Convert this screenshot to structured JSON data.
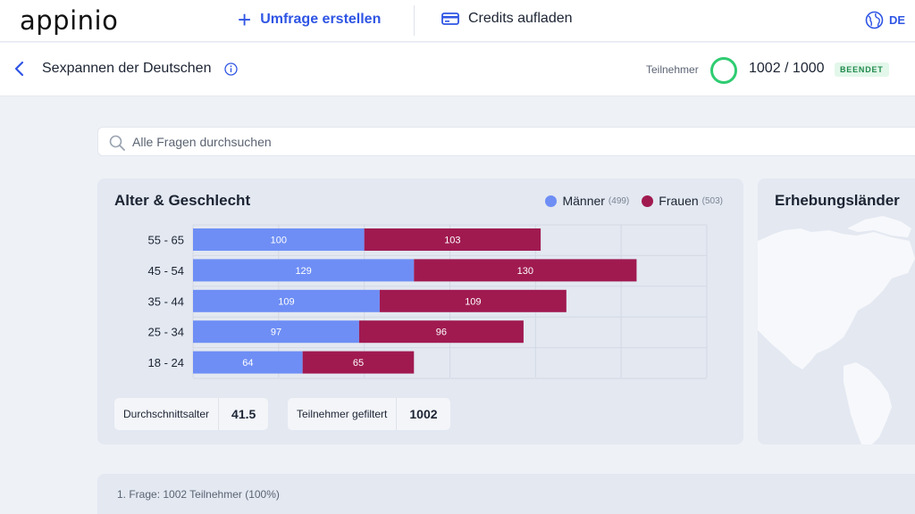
{
  "nav": {
    "logo": "appinio",
    "create_label": "Umfrage erstellen",
    "credits_label": "Credits aufladen",
    "language": "DE"
  },
  "subheader": {
    "title": "Sexpannen der Deutschen",
    "participants_label": "Teilnehmer",
    "participants_count": "1002 / 1000",
    "status": "BEENDET"
  },
  "search": {
    "placeholder": "Alle Fragen durchsuchen"
  },
  "age_gender_card": {
    "title": "Alter & Geschlecht",
    "legend": [
      {
        "label": "Männer",
        "count": "(499)",
        "color": "#6e8ef5"
      },
      {
        "label": "Frauen",
        "count": "(503)",
        "color": "#a01a50"
      }
    ],
    "stats": [
      {
        "label": "Durchschnittsalter",
        "value": "41.5"
      },
      {
        "label": "Teilnehmer gefiltert",
        "value": "1002"
      }
    ]
  },
  "chart_data": {
    "type": "bar",
    "orientation": "horizontal-stacked",
    "categories": [
      "55 - 65",
      "45 - 54",
      "35 - 44",
      "25 - 34",
      "18 - 24"
    ],
    "series": [
      {
        "name": "Männer",
        "values": [
          100,
          129,
          109,
          97,
          64
        ],
        "color": "#6e8ef5"
      },
      {
        "name": "Frauen",
        "values": [
          103,
          130,
          109,
          96,
          65
        ],
        "color": "#a01a50"
      }
    ],
    "xlim": [
      0,
      300
    ],
    "grid": true
  },
  "map_card": {
    "title": "Erhebungsländer"
  },
  "question_card": {
    "text": "1. Frage: 1002 Teilnehmer (100%)"
  }
}
